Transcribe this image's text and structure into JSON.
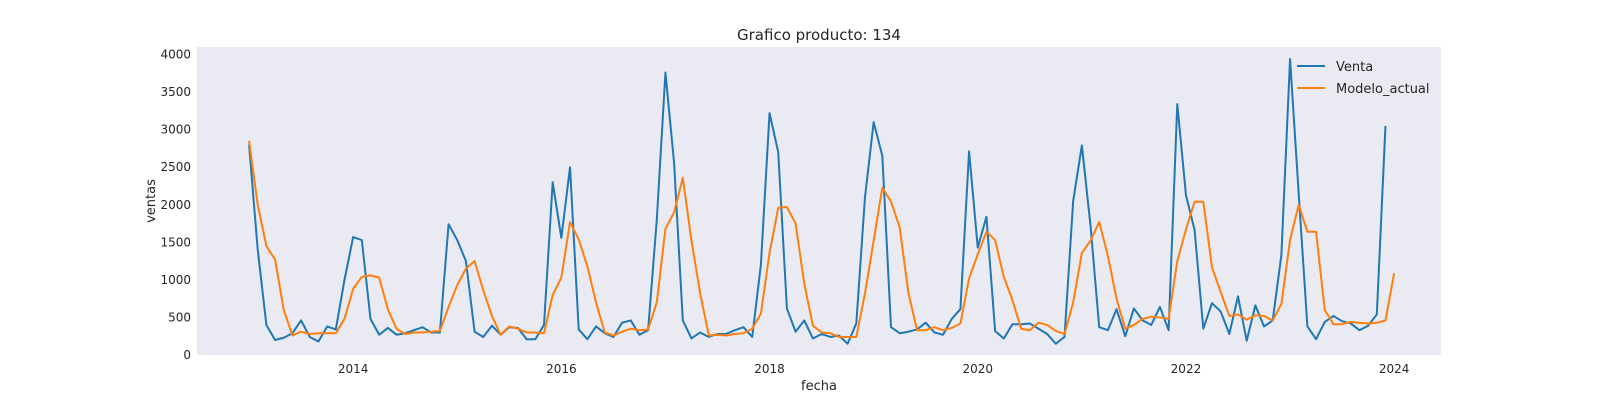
{
  "chart_data": {
    "type": "line",
    "title": "Grafico producto: 134",
    "xlabel": "fecha",
    "ylabel": "ventas",
    "xlim": [
      2012.5,
      2024.45
    ],
    "ylim": [
      0,
      4100
    ],
    "x_ticks": [
      2014,
      2016,
      2018,
      2020,
      2022,
      2024
    ],
    "x_tick_labels": [
      "2014",
      "2016",
      "2018",
      "2020",
      "2022",
      "2024"
    ],
    "y_ticks": [
      0,
      500,
      1000,
      1500,
      2000,
      2500,
      3000,
      3500,
      4000
    ],
    "y_tick_labels": [
      "0",
      "500",
      "1000",
      "1500",
      "2000",
      "2500",
      "3000",
      "3500",
      "4000"
    ],
    "grid": false,
    "legend_position": "top-right",
    "x_start": "2013-01",
    "x_frequency": "monthly",
    "series": [
      {
        "name": "Venta",
        "color": "#1f77b4",
        "values": [
          2800,
          1400,
          400,
          200,
          230,
          290,
          460,
          240,
          180,
          380,
          340,
          1000,
          1570,
          1530,
          480,
          270,
          360,
          270,
          290,
          330,
          370,
          300,
          300,
          1740,
          1530,
          1250,
          310,
          240,
          390,
          270,
          370,
          360,
          210,
          210,
          400,
          2300,
          1560,
          2500,
          340,
          210,
          380,
          290,
          240,
          430,
          460,
          270,
          330,
          1800,
          3760,
          2550,
          460,
          220,
          300,
          240,
          280,
          280,
          330,
          370,
          240,
          1200,
          3220,
          2700,
          620,
          310,
          460,
          220,
          280,
          240,
          260,
          150,
          420,
          2100,
          3100,
          2650,
          370,
          290,
          310,
          340,
          430,
          300,
          270,
          480,
          610,
          2710,
          1430,
          1840,
          320,
          220,
          410,
          410,
          420,
          350,
          280,
          150,
          240,
          2050,
          2790,
          1720,
          370,
          330,
          610,
          250,
          620,
          460,
          400,
          640,
          330,
          3340,
          2130,
          1660,
          350,
          690,
          580,
          280,
          780,
          190,
          660,
          380,
          460,
          1330,
          3940,
          2140,
          380,
          210,
          440,
          520,
          450,
          420,
          330,
          390,
          540,
          3050
        ]
      },
      {
        "name": "Modelo_actual",
        "color": "#ff7f0e",
        "values": [
          2850,
          2000,
          1450,
          1270,
          600,
          260,
          310,
          280,
          290,
          290,
          290,
          480,
          880,
          1040,
          1060,
          1030,
          610,
          350,
          280,
          300,
          300,
          310,
          320,
          640,
          930,
          1150,
          1250,
          860,
          520,
          270,
          380,
          350,
          300,
          300,
          290,
          800,
          1030,
          1770,
          1540,
          1180,
          700,
          300,
          260,
          310,
          350,
          330,
          340,
          700,
          1680,
          1900,
          2360,
          1520,
          820,
          260,
          270,
          260,
          280,
          290,
          350,
          550,
          1360,
          1960,
          1970,
          1750,
          950,
          390,
          300,
          290,
          240,
          240,
          240,
          820,
          1520,
          2230,
          2040,
          1700,
          830,
          330,
          330,
          370,
          330,
          360,
          420,
          1020,
          1340,
          1640,
          1530,
          1040,
          730,
          350,
          330,
          430,
          400,
          320,
          280,
          700,
          1360,
          1520,
          1770,
          1320,
          750,
          350,
          400,
          480,
          510,
          500,
          480,
          1250,
          1670,
          2040,
          2040,
          1170,
          840,
          520,
          540,
          470,
          530,
          520,
          460,
          680,
          1530,
          2000,
          1640,
          1640,
          600,
          410,
          410,
          440,
          430,
          420,
          430,
          460,
          1090
        ]
      }
    ]
  }
}
